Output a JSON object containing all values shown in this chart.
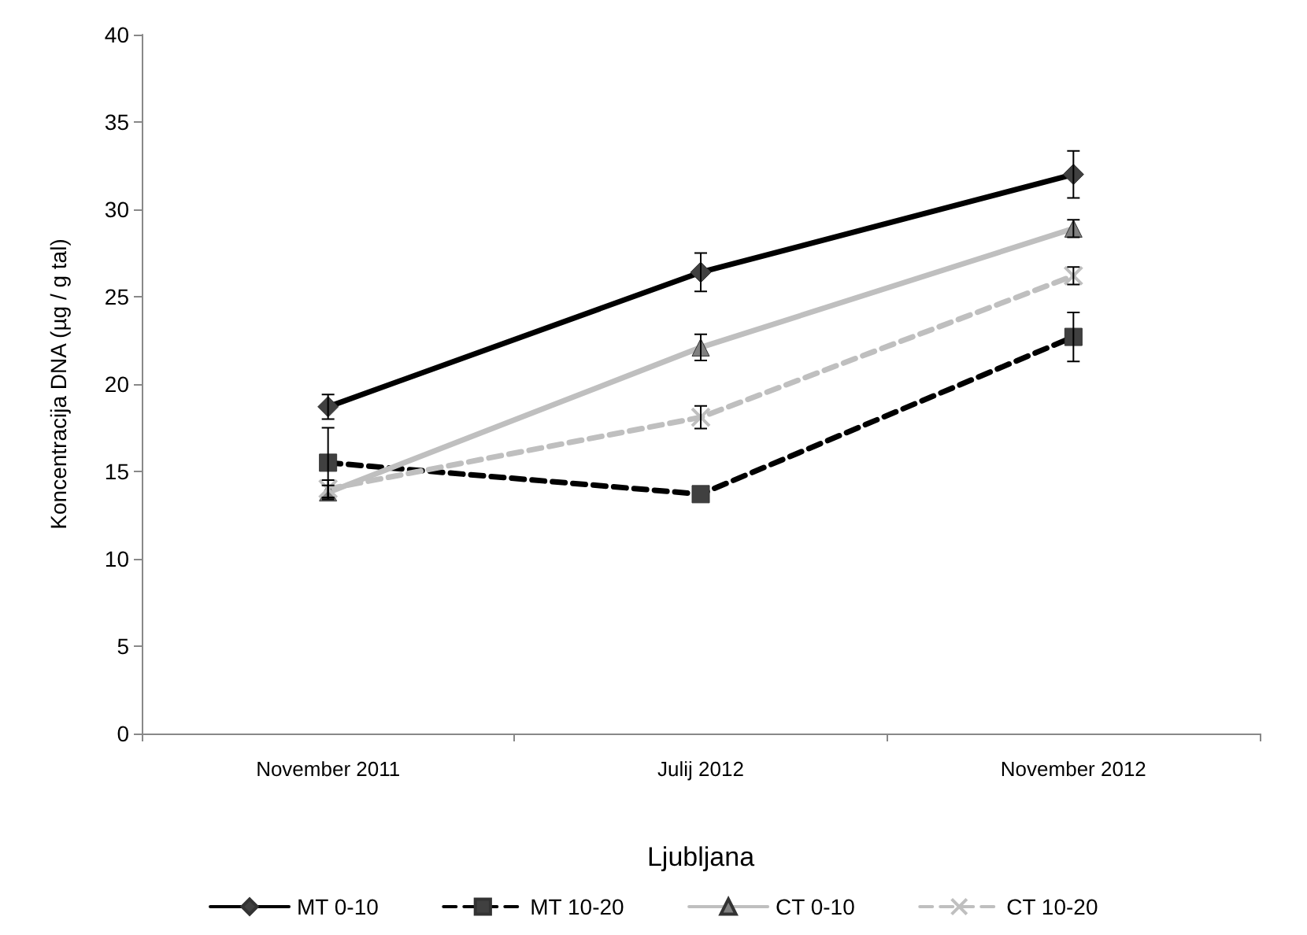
{
  "chart_data": {
    "type": "line",
    "xlabel": "Ljubljana",
    "ylabel": "Koncentracija DNA (µg / g tal)",
    "categories": [
      "November 2011",
      "Julij 2012",
      "November 2012"
    ],
    "ylim": [
      0,
      40
    ],
    "yticks": [
      0,
      5,
      10,
      15,
      20,
      25,
      30,
      35,
      40
    ],
    "grid": false,
    "legend": "bottom",
    "series": [
      {
        "name": "MT 0-10",
        "color": "#000000",
        "marker": "diamond",
        "line_style": "solid",
        "values": [
          18.7,
          26.4,
          32.0
        ],
        "errors": [
          0.7,
          1.1,
          1.35
        ]
      },
      {
        "name": "MT 10-20",
        "color": "#000000",
        "marker": "square",
        "line_style": "dashed",
        "values": [
          15.5,
          13.7,
          22.7
        ],
        "errors": [
          2.0,
          null,
          1.4
        ]
      },
      {
        "name": "CT 0-10",
        "color": "#bfbfbf",
        "marker": "triangle",
        "line_style": "solid",
        "values": [
          13.8,
          22.1,
          28.9
        ],
        "errors": [
          0.4,
          0.75,
          0.5
        ]
      },
      {
        "name": "CT 10-20",
        "color": "#bfbfbf",
        "marker": "cross",
        "line_style": "dashed",
        "values": [
          14.0,
          18.1,
          26.2
        ],
        "errors": [
          0.5,
          0.65,
          0.5
        ]
      }
    ]
  }
}
